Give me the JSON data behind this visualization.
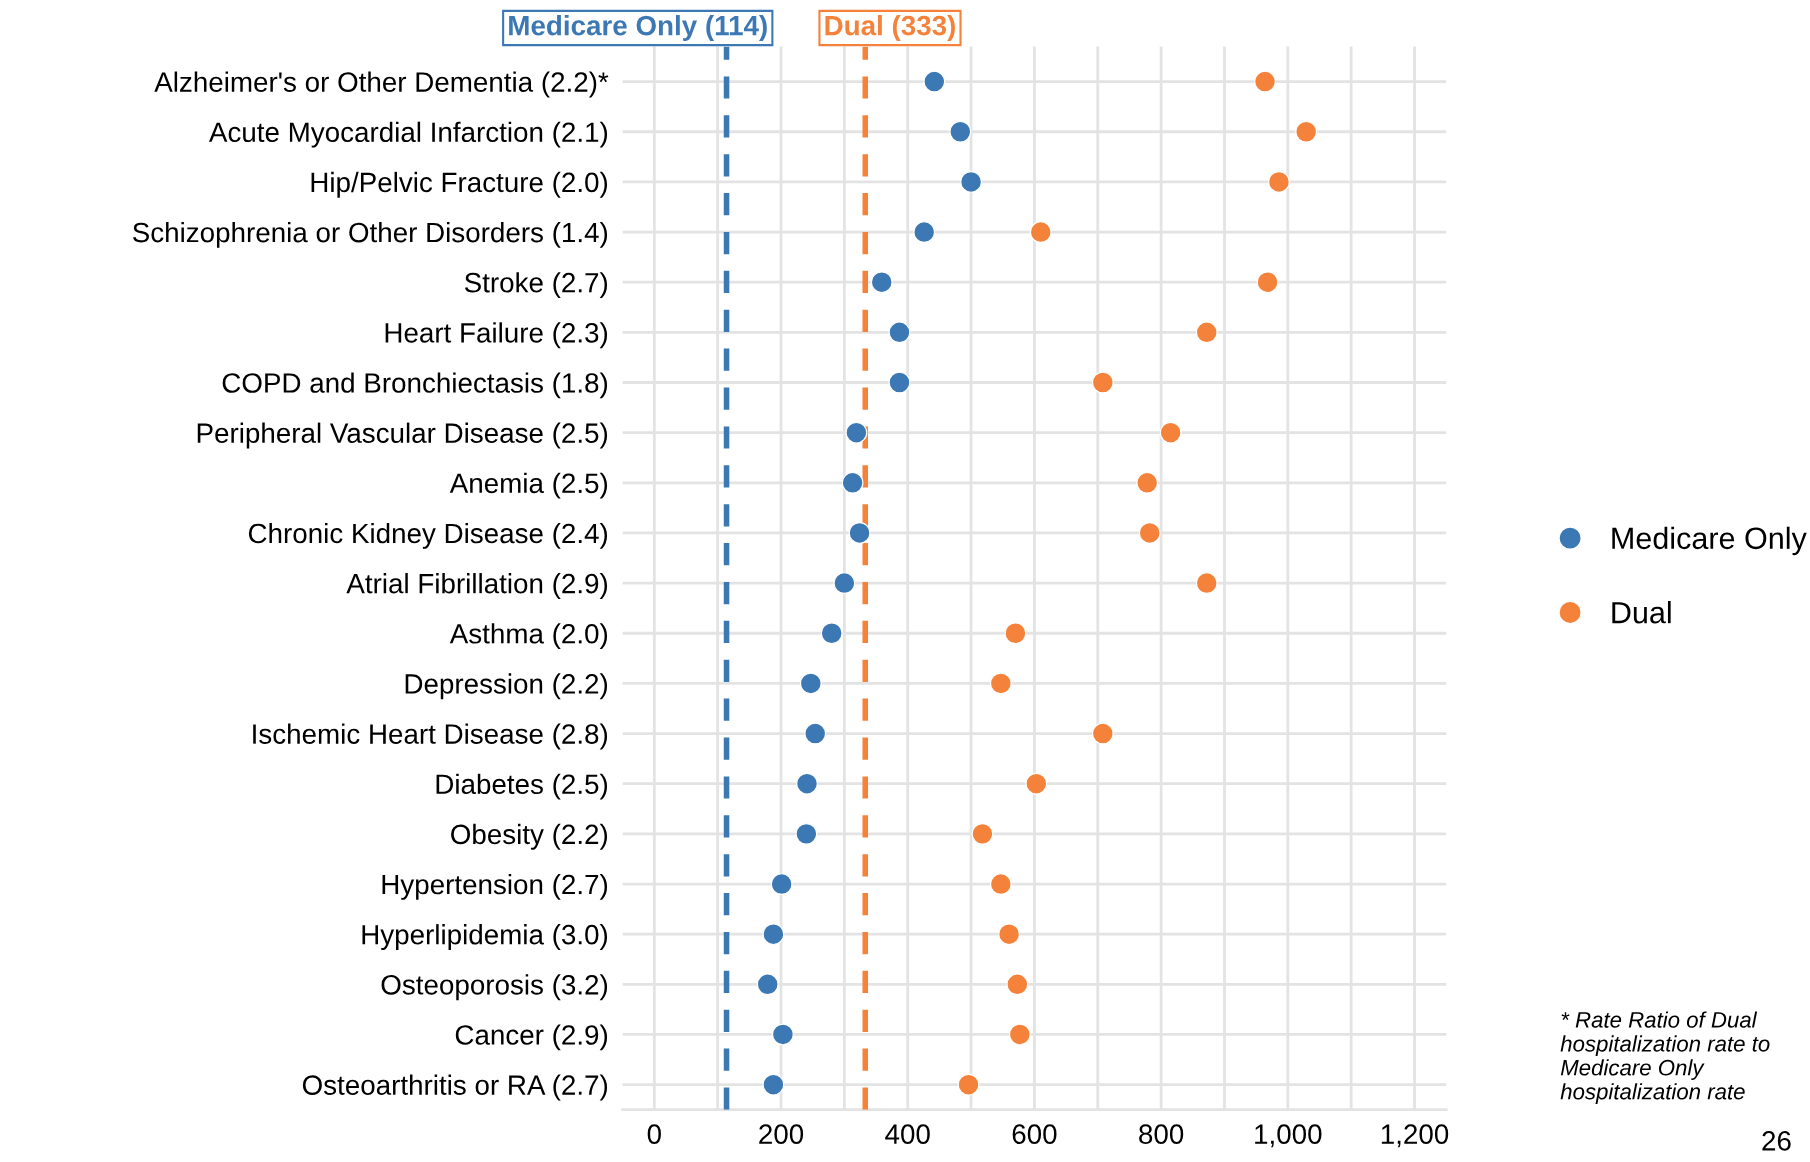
{
  "chart_data": {
    "type": "scatter",
    "orientation": "horizontal",
    "categories": [
      "Alzheimer's or Other Dementia (2.2)*",
      "Acute Myocardial Infarction (2.1)",
      "Hip/Pelvic Fracture (2.0)",
      "Schizophrenia or Other Disorders (1.4)",
      "Stroke (2.7)",
      "Heart Failure (2.3)",
      "COPD and Bronchiectasis (1.8)",
      "Peripheral Vascular Disease (2.5)",
      "Anemia (2.5)",
      "Chronic Kidney Disease (2.4)",
      "Atrial Fibrillation (2.9)",
      "Asthma (2.0)",
      "Depression (2.2)",
      "Ischemic Heart Disease (2.8)",
      "Diabetes (2.5)",
      "Obesity (2.2)",
      "Hypertension (2.7)",
      "Hyperlipidemia (3.0)",
      "Osteoporosis (3.2)",
      "Cancer (2.9)",
      "Osteoarthritis or RA (2.7)"
    ],
    "series": [
      {
        "name": "Medicare Only",
        "color": "#3b78b4",
        "values": [
          442,
          483,
          500,
          426,
          359,
          387,
          387,
          319,
          313,
          324,
          300,
          280,
          247,
          254,
          241,
          240,
          201,
          188,
          179,
          203,
          188
        ]
      },
      {
        "name": "Dual",
        "color": "#f5823a",
        "values": [
          964,
          1029,
          986,
          610,
          968,
          872,
          708,
          815,
          778,
          782,
          872,
          570,
          547,
          708,
          603,
          518,
          547,
          560,
          573,
          577,
          496
        ]
      }
    ],
    "xlim": [
      -50,
      1250
    ],
    "xticks": [
      0,
      {
        "value": 100,
        "label": null
      },
      200,
      {
        "value": 300,
        "label": null
      },
      400,
      {
        "value": 500,
        "label": null
      },
      600,
      {
        "value": 700,
        "label": null
      },
      800,
      {
        "value": 900,
        "label": null
      },
      "1,000",
      {
        "value": 1100,
        "label": null
      },
      "1,200"
    ],
    "grid": true,
    "legend": "right",
    "marker": "circle",
    "ref_lines": [
      {
        "axis": "x",
        "value": 114,
        "label": "Medicare Only (114)",
        "color": "#3b78b4",
        "line_style": "dashed"
      },
      {
        "axis": "x",
        "value": 333,
        "label": "Dual (333)",
        "color": "#f5823a",
        "line_style": "dashed"
      }
    ],
    "annotations": [
      "* Rate Ratio of Dual hospitalization rate to Medicare Only hospitalization rate",
      "26"
    ]
  }
}
